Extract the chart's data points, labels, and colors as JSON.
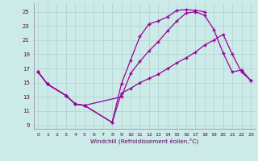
{
  "bg_color": "#cceae8",
  "line_color": "#990099",
  "grid_color": "#b8d8d8",
  "xlabel": "Windchill (Refroidissement éolien,°C)",
  "ylim": [
    8.5,
    26.2
  ],
  "xlim": [
    -0.5,
    23.5
  ],
  "yticks": [
    9,
    11,
    13,
    15,
    17,
    19,
    21,
    23,
    25
  ],
  "xticks": [
    0,
    1,
    2,
    3,
    4,
    5,
    6,
    7,
    8,
    9,
    10,
    11,
    12,
    13,
    14,
    15,
    16,
    17,
    18,
    19,
    20,
    21,
    22,
    23
  ],
  "line1_x": [
    0,
    1,
    3,
    4,
    5,
    8,
    9,
    10,
    11,
    12,
    13,
    14,
    15,
    16,
    17,
    18
  ],
  "line1_y": [
    16.5,
    14.8,
    13.2,
    12.0,
    11.8,
    9.4,
    14.8,
    18.2,
    21.5,
    23.3,
    23.7,
    24.3,
    25.2,
    25.3,
    25.2,
    25.0
  ],
  "line2_x": [
    0,
    1,
    3,
    4,
    5,
    9,
    10,
    11,
    12,
    13,
    14,
    15,
    16,
    17,
    18,
    19,
    20,
    21,
    22,
    23
  ],
  "line2_y": [
    16.5,
    14.8,
    13.2,
    12.0,
    11.8,
    13.0,
    16.3,
    18.0,
    19.5,
    20.8,
    22.3,
    23.7,
    24.8,
    25.0,
    24.5,
    22.5,
    19.2,
    16.5,
    16.8,
    15.3
  ],
  "line3_x": [
    0,
    1,
    3,
    4,
    5,
    8,
    9,
    10,
    11,
    12,
    13,
    14,
    15,
    16,
    17,
    18,
    19,
    20,
    21,
    22,
    23
  ],
  "line3_y": [
    16.5,
    14.8,
    13.2,
    12.0,
    11.8,
    9.4,
    13.5,
    14.2,
    15.0,
    15.6,
    16.2,
    17.0,
    17.8,
    18.5,
    19.3,
    20.3,
    21.0,
    21.8,
    19.0,
    16.5,
    15.3
  ]
}
